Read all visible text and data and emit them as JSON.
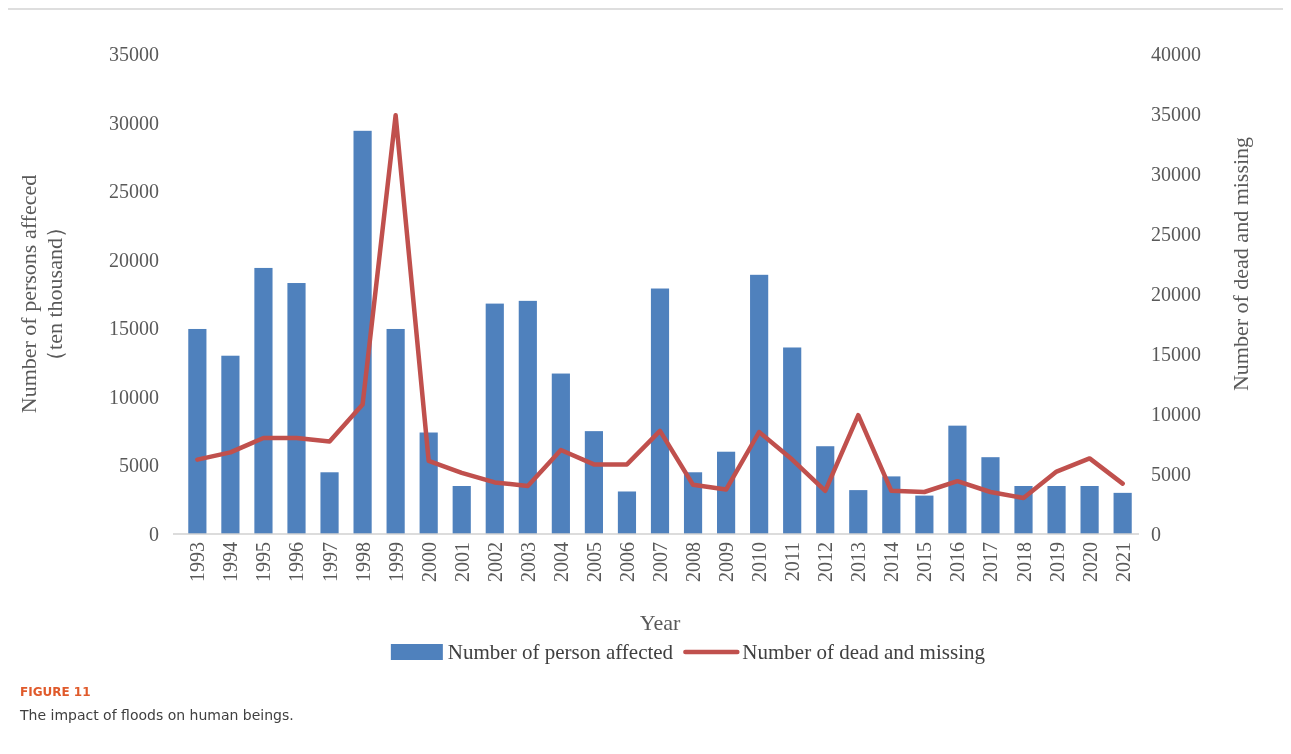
{
  "chart_data": {
    "type": "bar",
    "categories": [
      "1993",
      "1994",
      "1995",
      "1996",
      "1997",
      "1998",
      "1999",
      "2000",
      "2001",
      "2002",
      "2003",
      "2004",
      "2005",
      "2006",
      "2007",
      "2008",
      "2009",
      "2010",
      "2011",
      "2012",
      "2013",
      "2014",
      "2015",
      "2016",
      "2017",
      "2018",
      "2019",
      "2020",
      "2021"
    ],
    "series": [
      {
        "name": "Number of person affected",
        "color": "#4f81bd",
        "values": [
          14950,
          13000,
          19400,
          18300,
          4500,
          29400,
          14950,
          7400,
          3500,
          16800,
          17000,
          11700,
          7500,
          3100,
          17900,
          4500,
          6000,
          18900,
          13600,
          6400,
          3200,
          4200,
          2800,
          7900,
          5600,
          3500,
          3500,
          3500,
          3000
        ]
      },
      {
        "name": "Number of dead and missing",
        "type": "line",
        "axis": "y2",
        "color": "#c0504d",
        "values": [
          6200,
          6800,
          8000,
          8000,
          7700,
          10800,
          34900,
          6100,
          5100,
          4300,
          4000,
          7000,
          5800,
          5800,
          8600,
          4100,
          3700,
          8500,
          6200,
          3600,
          9900,
          3600,
          3500,
          4400,
          3500,
          3000,
          5200,
          6300,
          4200
        ]
      }
    ],
    "xlabel": "Year",
    "ylabel": "Number of persons affeced\n（ten thousand）",
    "y2label": "Number of dead and missing",
    "ylim": [
      0,
      35000
    ],
    "yticks": [
      0,
      5000,
      10000,
      15000,
      20000,
      25000,
      30000,
      35000
    ],
    "y2lim": [
      0,
      40000
    ],
    "y2ticks": [
      0,
      5000,
      10000,
      15000,
      20000,
      25000,
      30000,
      35000,
      40000
    ],
    "grid": false,
    "legend": "bottom",
    "marker": "none",
    "line_style": "solid",
    "annotations": [
      "FIGURE 11",
      "The impact of floods on human beings."
    ]
  }
}
